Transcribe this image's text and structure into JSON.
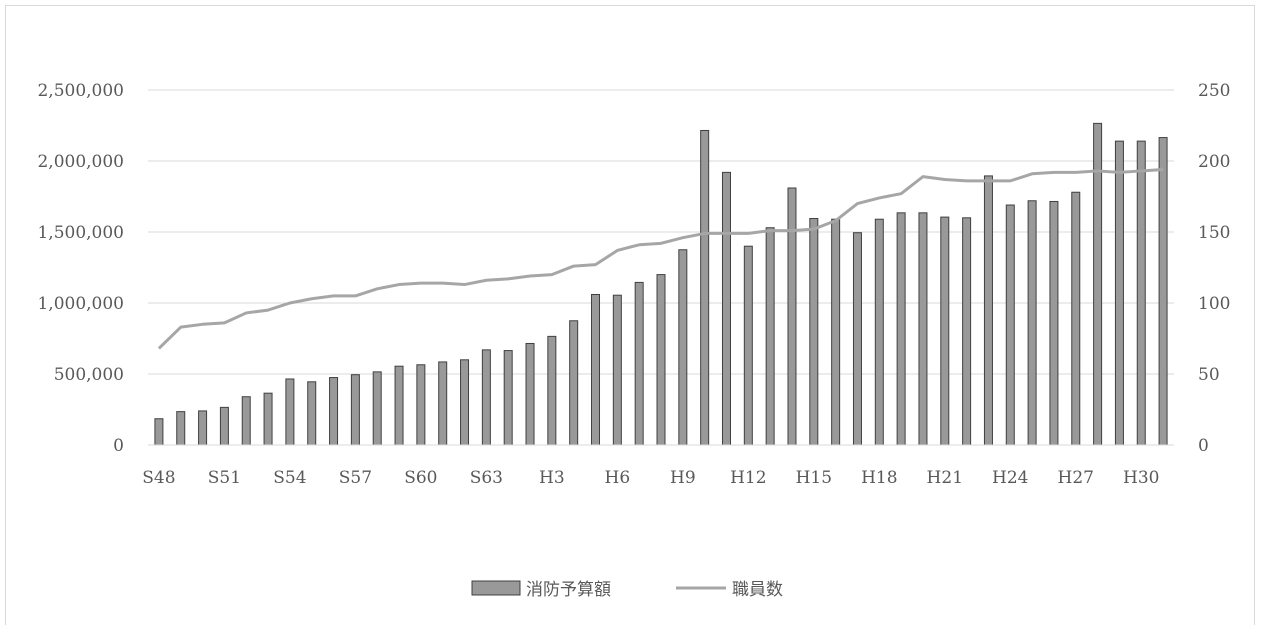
{
  "chart_data": {
    "type": "bar",
    "x_tick_labels": [
      "S48",
      "S51",
      "S54",
      "S57",
      "S60",
      "S63",
      "H3",
      "H6",
      "H9",
      "H12",
      "H15",
      "H18",
      "H21",
      "H24",
      "H27",
      "H30"
    ],
    "x_tick_every": 3,
    "series": [
      {
        "name": "消防予算額",
        "type": "bar",
        "axis": "left",
        "color": "#999999",
        "values": [
          185000,
          235000,
          240000,
          265000,
          340000,
          365000,
          465000,
          445000,
          475000,
          495000,
          515000,
          555000,
          565000,
          585000,
          600000,
          670000,
          665000,
          715000,
          765000,
          875000,
          1060000,
          1055000,
          1145000,
          1200000,
          1375000,
          2215000,
          1920000,
          1400000,
          1530000,
          1810000,
          1595000,
          1590000,
          1495000,
          1590000,
          1635000,
          1635000,
          1605000,
          1600000,
          1895000,
          1690000,
          1720000,
          1715000,
          1780000,
          2265000,
          2140000,
          2140000,
          2165000
        ]
      },
      {
        "name": "職員数",
        "type": "line",
        "axis": "right",
        "color": "#a6a6a6",
        "values": [
          68,
          83,
          85,
          86,
          93,
          95,
          100,
          103,
          105,
          105,
          110,
          113,
          114,
          114,
          113,
          116,
          117,
          119,
          120,
          126,
          127,
          137,
          141,
          142,
          146,
          149,
          149,
          149,
          151,
          151,
          152,
          158,
          170,
          174,
          177,
          189,
          187,
          186,
          186,
          186,
          191,
          192,
          192,
          193,
          192,
          193,
          194
        ]
      }
    ],
    "y_left": {
      "min": 0,
      "max": 2500000,
      "step": 500000,
      "tick_labels": [
        "0",
        "500,000",
        "1,000,000",
        "1,500,000",
        "2,000,000",
        "2,500,000"
      ]
    },
    "y_right": {
      "min": 0,
      "max": 250,
      "step": 50,
      "tick_labels": [
        "0",
        "50",
        "100",
        "150",
        "200",
        "250"
      ]
    },
    "grid": true,
    "legend_position": "bottom"
  }
}
